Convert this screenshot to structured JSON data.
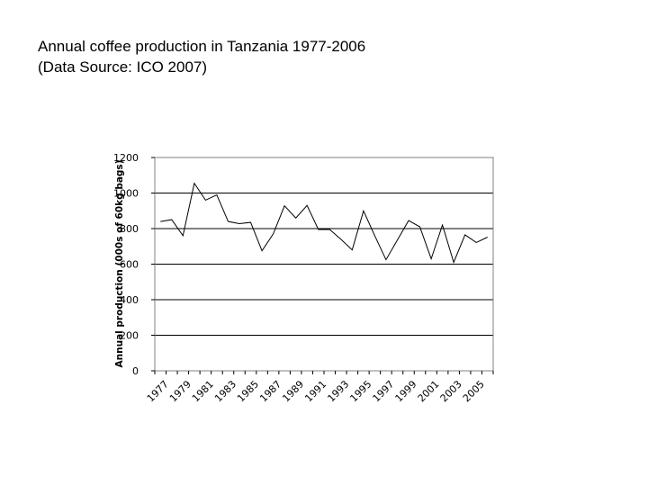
{
  "header": {
    "title_line1": "Annual coffee production in Tanzania 1977-2006",
    "title_line2": "(Data Source: ICO 2007)"
  },
  "chart_data": {
    "type": "line",
    "title": "Annual coffee production in Tanzania 1977-2006",
    "subtitle": "(Data Source: ICO 2007)",
    "xlabel": "",
    "ylabel": "Annual production (000s of 60kg bags)",
    "ylim": [
      0,
      1200
    ],
    "yticks": [
      0,
      200,
      400,
      600,
      800,
      1000,
      1200
    ],
    "xtick_labels": [
      "1977",
      "1979",
      "1981",
      "1983",
      "1985",
      "1987",
      "1989",
      "1991",
      "1993",
      "1995",
      "1997",
      "1999",
      "2001",
      "2003",
      "2005"
    ],
    "grid": "horizontal",
    "legend": "none",
    "line_color": "#000000",
    "series": [
      {
        "x": [
          1977,
          1978,
          1979,
          1980,
          1981,
          1982,
          1983,
          1984,
          1985,
          1986,
          1987,
          1988,
          1989,
          1990,
          1991,
          1992,
          1993,
          1994,
          1995,
          1996,
          1997,
          1998,
          1999,
          2000,
          2001,
          2002,
          2003,
          2004,
          2005,
          2006
        ],
        "values": [
          840,
          850,
          760,
          1055,
          960,
          990,
          840,
          828,
          835,
          675,
          770,
          928,
          860,
          930,
          795,
          795,
          740,
          680,
          900,
          760,
          625,
          735,
          845,
          810,
          630,
          820,
          610,
          765,
          722,
          752
        ]
      }
    ]
  }
}
